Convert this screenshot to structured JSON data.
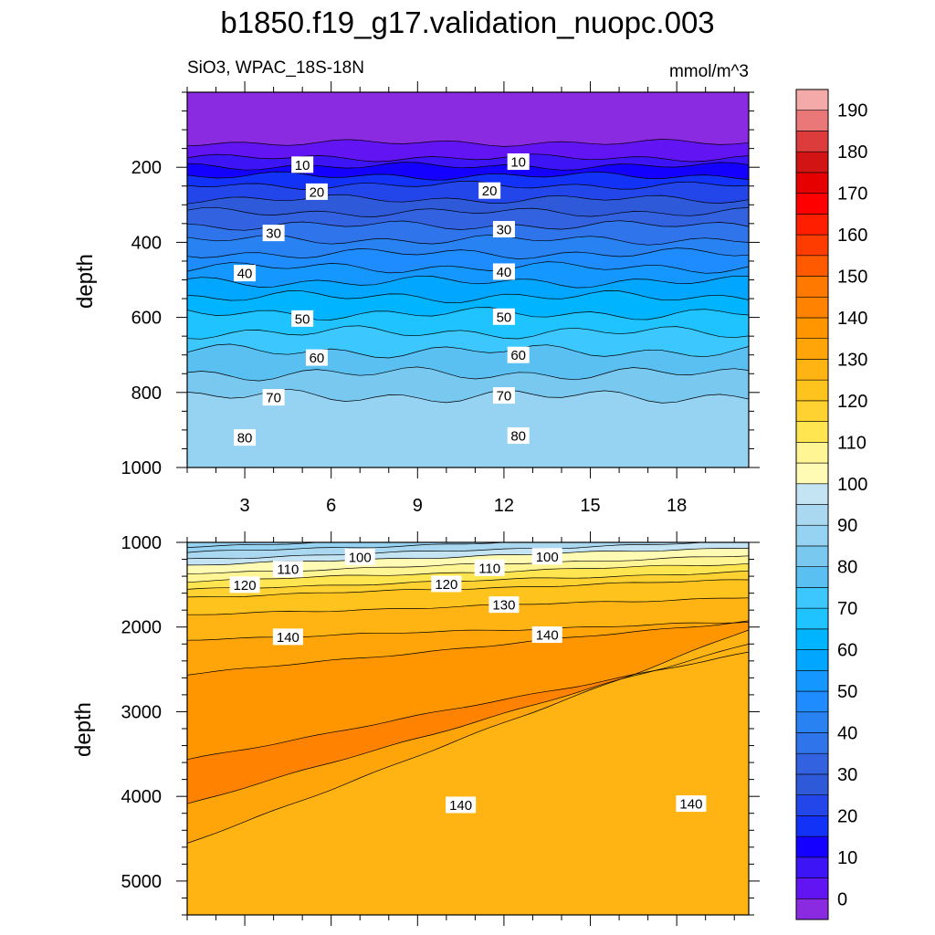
{
  "title": "b1850.f19_g17.validation_nuopc.003",
  "subtitle_left": "SiO3, WPAC_18S-18N",
  "subtitle_right": "mmol/m^3",
  "chart_data": {
    "type": "heatmap",
    "title": "b1850.f19_g17.validation_nuopc.003",
    "subtitle": "SiO3, WPAC_18S-18N",
    "units": "mmol/m^3",
    "xlim": [
      1,
      20.5
    ],
    "x_ticks": [
      3,
      6,
      9,
      12,
      15,
      18
    ],
    "colorbar": {
      "levels": [
        0,
        5,
        10,
        15,
        20,
        25,
        30,
        35,
        40,
        45,
        50,
        55,
        60,
        65,
        70,
        75,
        80,
        85,
        90,
        95,
        100,
        105,
        110,
        115,
        120,
        125,
        130,
        135,
        140,
        145,
        150,
        155,
        160,
        165,
        170,
        175,
        180,
        185,
        190,
        195
      ],
      "tick_labels": [
        "0",
        "10",
        "20",
        "30",
        "40",
        "50",
        "60",
        "70",
        "80",
        "90",
        "100",
        "110",
        "120",
        "130",
        "140",
        "150",
        "160",
        "170",
        "180",
        "190"
      ],
      "colors": [
        "#8a2be2",
        "#6314f2",
        "#3c14f6",
        "#1400ff",
        "#1232f8",
        "#2346ea",
        "#2e5ad9",
        "#3262e0",
        "#2f74ea",
        "#2882f2",
        "#1e8cff",
        "#1498ff",
        "#00a6ff",
        "#00b4ff",
        "#1ec3ff",
        "#3cc8ff",
        "#5ac0f2",
        "#78c8f0",
        "#96d2f2",
        "#aad8f0",
        "#c4e4f4",
        "#fffab4",
        "#fff594",
        "#ffe650",
        "#ffd232",
        "#ffc31e",
        "#ffb414",
        "#ffa50a",
        "#ff9600",
        "#ff8200",
        "#ff7800",
        "#ff5a00",
        "#ff3c00",
        "#ff1e00",
        "#ff0000",
        "#e60000",
        "#d21414",
        "#dc3c3c",
        "#eb7878",
        "#f5aaaa"
      ]
    },
    "panels": [
      {
        "name": "upper",
        "ylabel": "depth",
        "ylim": [
          1000,
          0
        ],
        "y_ticks": [
          200,
          400,
          600,
          800,
          1000
        ],
        "contour_levels": [
          5,
          10,
          15,
          20,
          25,
          30,
          35,
          40,
          45,
          50,
          55,
          60,
          65,
          70,
          75,
          80,
          85,
          90
        ],
        "contour_depths_at_x_left": [
          135,
          175,
          197,
          223,
          248,
          285,
          320,
          355,
          393,
          430,
          467,
          505,
          545,
          590,
          640,
          690,
          750,
          810
        ],
        "contour_labels": [
          {
            "value": "10",
            "x": 5.0,
            "depth": 193
          },
          {
            "value": "10",
            "x": 12.5,
            "depth": 185
          },
          {
            "value": "20",
            "x": 5.5,
            "depth": 265
          },
          {
            "value": "20",
            "x": 11.5,
            "depth": 262
          },
          {
            "value": "30",
            "x": 4.0,
            "depth": 375
          },
          {
            "value": "30",
            "x": 12.0,
            "depth": 365
          },
          {
            "value": "40",
            "x": 3.0,
            "depth": 482
          },
          {
            "value": "40",
            "x": 12.0,
            "depth": 478
          },
          {
            "value": "50",
            "x": 5.0,
            "depth": 603
          },
          {
            "value": "50",
            "x": 12.0,
            "depth": 598
          },
          {
            "value": "60",
            "x": 5.5,
            "depth": 707
          },
          {
            "value": "60",
            "x": 12.5,
            "depth": 700
          },
          {
            "value": "70",
            "x": 4.0,
            "depth": 813
          },
          {
            "value": "70",
            "x": 12.0,
            "depth": 808
          },
          {
            "value": "80",
            "x": 3.0,
            "depth": 920
          },
          {
            "value": "80",
            "x": 12.5,
            "depth": 915
          }
        ]
      },
      {
        "name": "lower",
        "ylabel": "depth",
        "ylim": [
          5400,
          1000
        ],
        "y_ticks": [
          1000,
          2000,
          3000,
          4000,
          5000
        ],
        "contour_levels": [
          90,
          95,
          100,
          105,
          110,
          115,
          120,
          125,
          130,
          135,
          140,
          145,
          140,
          135
        ],
        "contour_depths_at_x_left": [
          1050,
          1120,
          1200,
          1270,
          1370,
          1460,
          1560,
          1650,
          1860,
          2150,
          2560,
          3570,
          4090,
          4560
        ],
        "contour_labels": [
          {
            "value": "100",
            "x": 7.0,
            "depth": 1170
          },
          {
            "value": "100",
            "x": 13.5,
            "depth": 1165
          },
          {
            "value": "110",
            "x": 4.5,
            "depth": 1315
          },
          {
            "value": "110",
            "x": 11.5,
            "depth": 1300
          },
          {
            "value": "120",
            "x": 3.0,
            "depth": 1500
          },
          {
            "value": "120",
            "x": 10.0,
            "depth": 1490
          },
          {
            "value": "130",
            "x": 12.0,
            "depth": 1735
          },
          {
            "value": "140",
            "x": 4.5,
            "depth": 2115
          },
          {
            "value": "140",
            "x": 13.5,
            "depth": 2090
          },
          {
            "value": "140",
            "x": 10.5,
            "depth": 4100
          },
          {
            "value": "140",
            "x": 18.5,
            "depth": 4085
          }
        ]
      }
    ]
  }
}
